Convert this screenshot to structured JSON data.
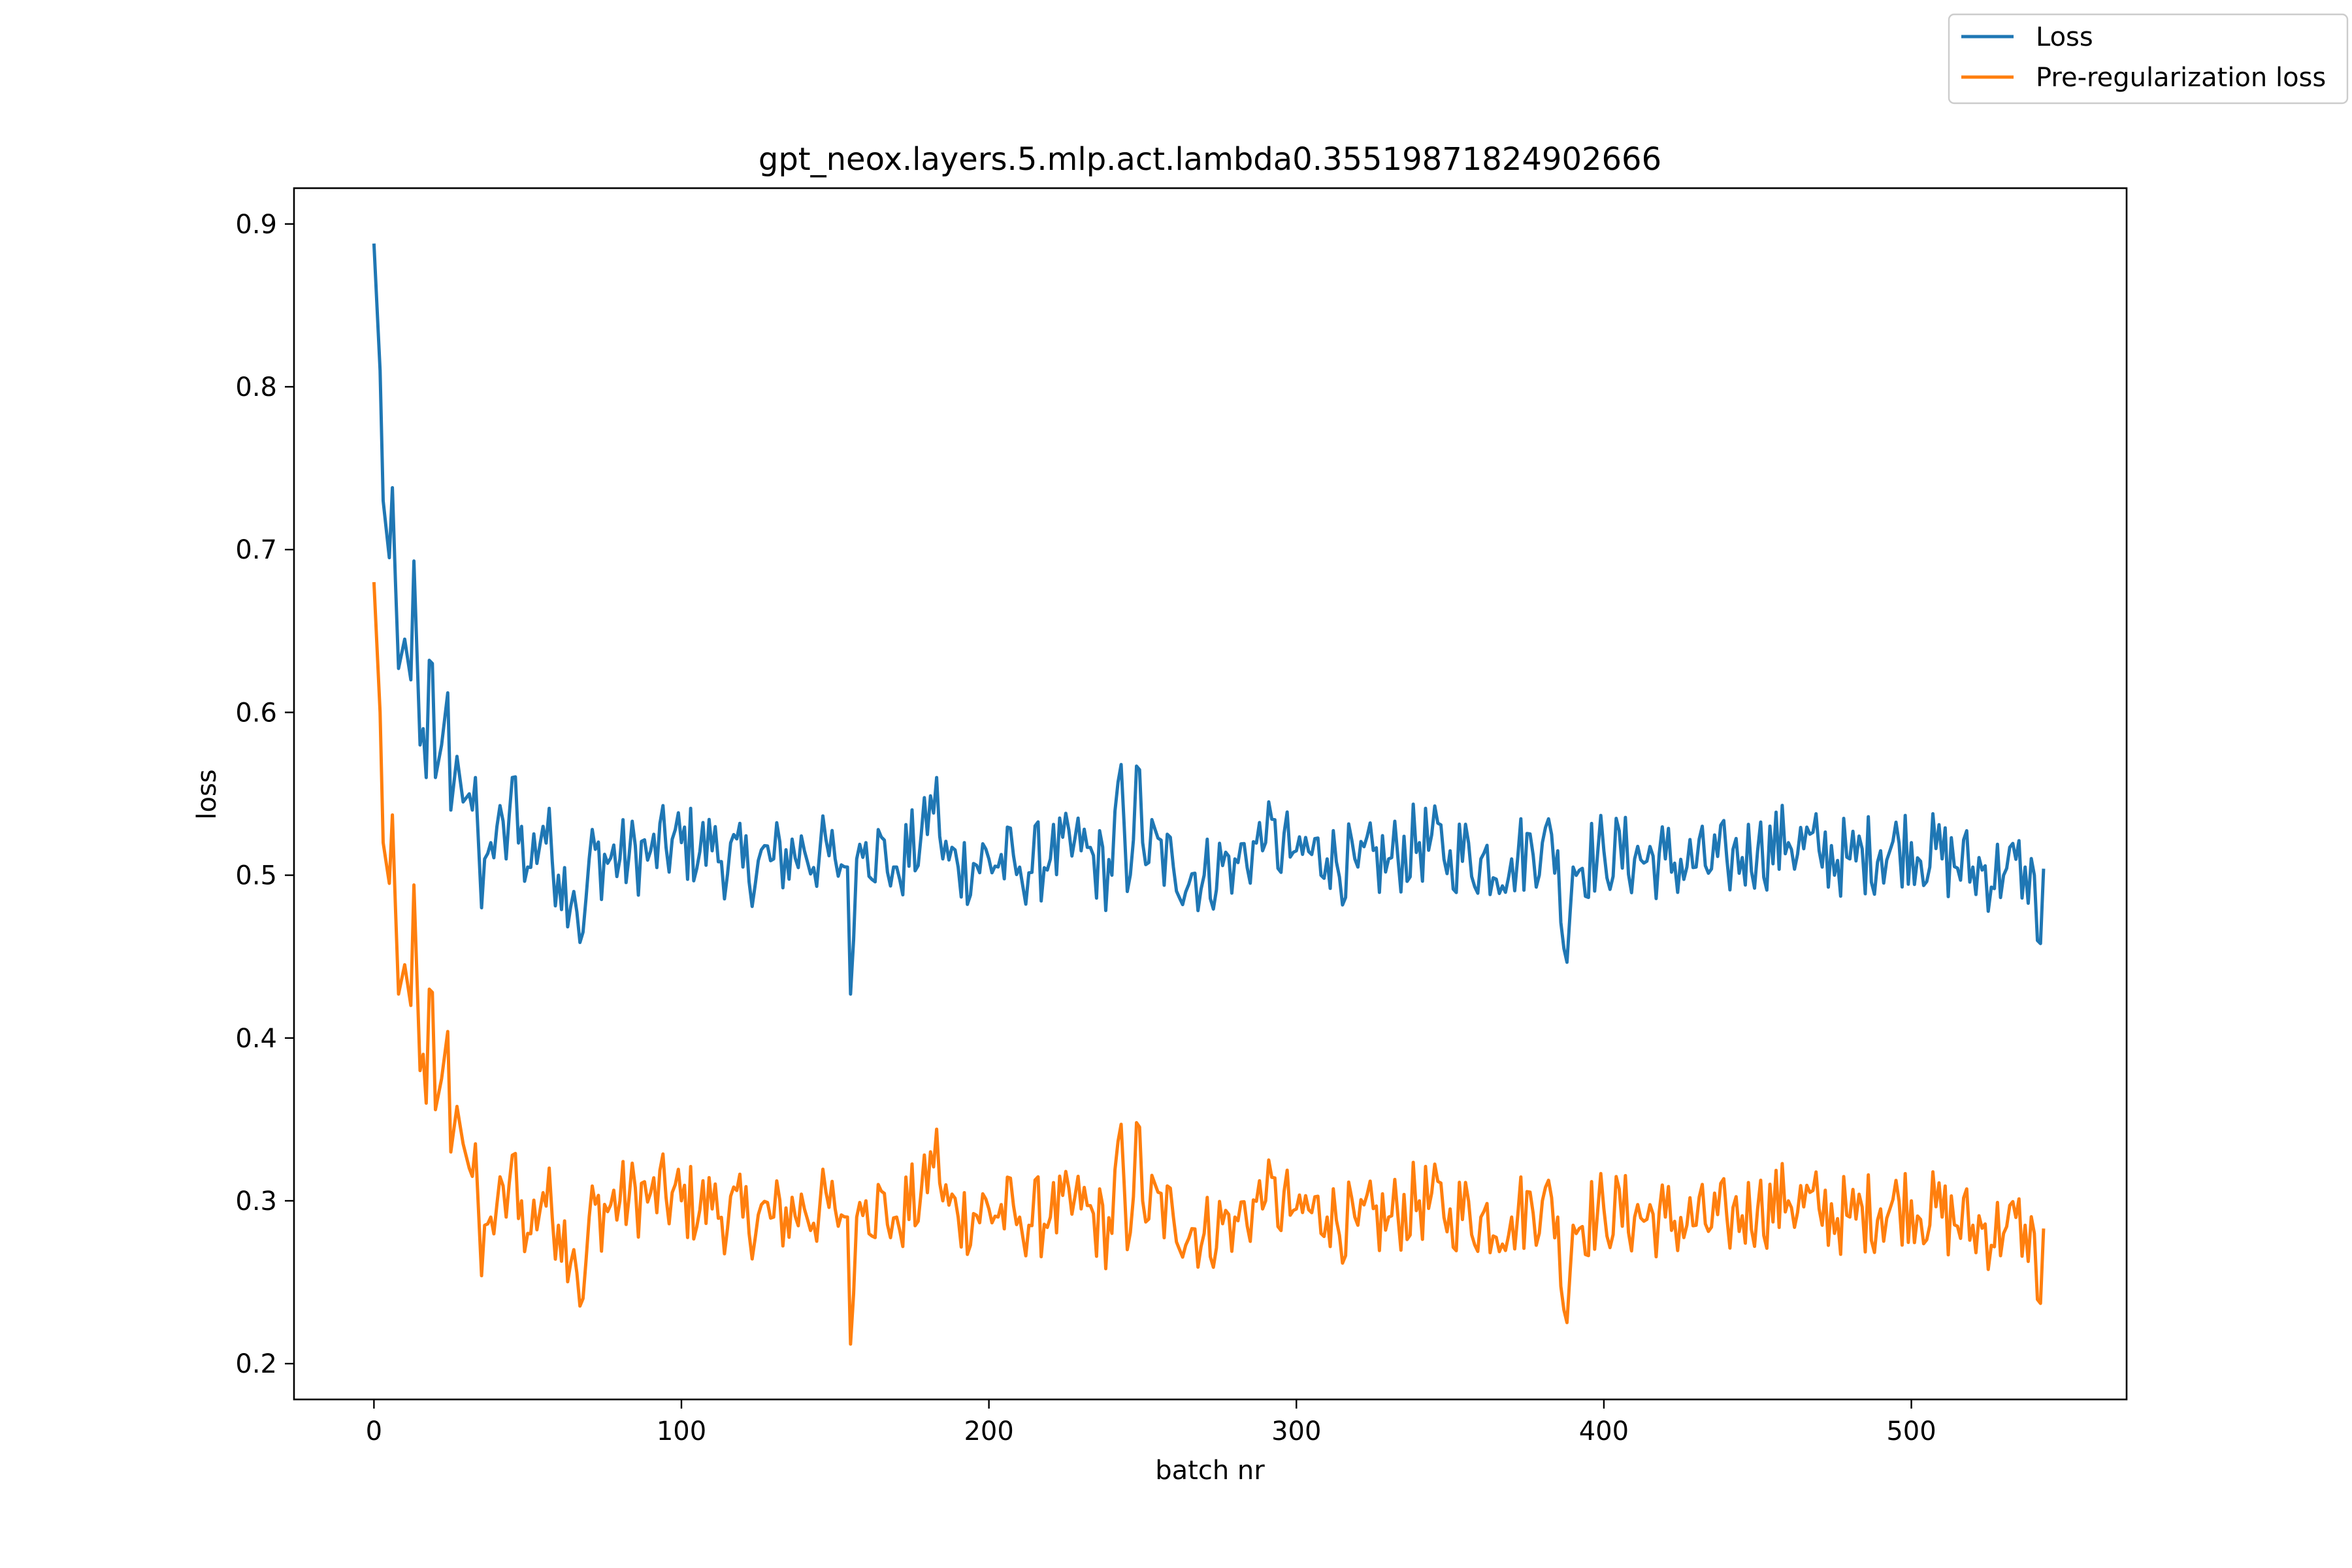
{
  "chart_data": {
    "type": "line",
    "title": "gpt_neox.layers.5.mlp.act.lambda0.35519871824902666",
    "xlabel": "batch nr",
    "ylabel": "loss",
    "xlim": [
      -26,
      570
    ],
    "ylim": [
      0.178,
      0.922
    ],
    "xticks": [
      0,
      100,
      200,
      300,
      400,
      500
    ],
    "yticks": [
      0.2,
      0.3,
      0.4,
      0.5,
      0.6,
      0.7,
      0.8,
      0.9
    ],
    "xtick_labels": [
      "0",
      "100",
      "200",
      "300",
      "400",
      "500"
    ],
    "ytick_labels": [
      "0.2",
      "0.3",
      "0.4",
      "0.5",
      "0.6",
      "0.7",
      "0.8",
      "0.9"
    ],
    "grid": false,
    "legend_position": "top-right (outside axes)",
    "series": [
      {
        "name": "Loss",
        "color": "#1f77b4",
        "anchors": [
          [
            0,
            0.888
          ],
          [
            2,
            0.81
          ],
          [
            3,
            0.73
          ],
          [
            5,
            0.695
          ],
          [
            6,
            0.738
          ],
          [
            7,
            0.68
          ],
          [
            8,
            0.627
          ],
          [
            10,
            0.645
          ],
          [
            12,
            0.62
          ],
          [
            13,
            0.693
          ],
          [
            15,
            0.58
          ],
          [
            16,
            0.59
          ],
          [
            17,
            0.56
          ],
          [
            18,
            0.632
          ],
          [
            19,
            0.63
          ],
          [
            20,
            0.56
          ],
          [
            22,
            0.58
          ],
          [
            24,
            0.612
          ],
          [
            25,
            0.54
          ],
          [
            27,
            0.573
          ],
          [
            29,
            0.545
          ],
          [
            31,
            0.55
          ],
          [
            32,
            0.54
          ],
          [
            33,
            0.56
          ],
          [
            35,
            0.48
          ],
          [
            36,
            0.51
          ],
          [
            38,
            0.52
          ],
          [
            40,
            0.53
          ],
          [
            43,
            0.51
          ],
          [
            45,
            0.56
          ],
          [
            48,
            0.53
          ],
          [
            50,
            0.505
          ],
          [
            55,
            0.53
          ],
          [
            60,
            0.5
          ],
          [
            65,
            0.49
          ],
          [
            68,
            0.465
          ],
          [
            70,
            0.51
          ],
          [
            80,
            0.51
          ],
          [
            90,
            0.515
          ],
          [
            100,
            0.52
          ],
          [
            110,
            0.515
          ],
          [
            120,
            0.505
          ],
          [
            130,
            0.51
          ],
          [
            140,
            0.515
          ],
          [
            150,
            0.51
          ],
          [
            154,
            0.505
          ],
          [
            155,
            0.427
          ],
          [
            157,
            0.51
          ],
          [
            160,
            0.52
          ],
          [
            170,
            0.505
          ],
          [
            180,
            0.525
          ],
          [
            183,
            0.56
          ],
          [
            185,
            0.51
          ],
          [
            190,
            0.505
          ],
          [
            200,
            0.51
          ],
          [
            210,
            0.505
          ],
          [
            220,
            0.51
          ],
          [
            230,
            0.515
          ],
          [
            240,
            0.5
          ],
          [
            243,
            0.568
          ],
          [
            245,
            0.49
          ],
          [
            248,
            0.567
          ],
          [
            250,
            0.52
          ],
          [
            260,
            0.505
          ],
          [
            270,
            0.5
          ],
          [
            280,
            0.51
          ],
          [
            290,
            0.52
          ],
          [
            300,
            0.515
          ],
          [
            310,
            0.51
          ],
          [
            320,
            0.505
          ],
          [
            330,
            0.51
          ],
          [
            340,
            0.52
          ],
          [
            350,
            0.515
          ],
          [
            360,
            0.51
          ],
          [
            370,
            0.51
          ],
          [
            380,
            0.52
          ],
          [
            385,
            0.515
          ],
          [
            387,
            0.455
          ],
          [
            390,
            0.505
          ],
          [
            400,
            0.515
          ],
          [
            410,
            0.51
          ],
          [
            420,
            0.51
          ],
          [
            430,
            0.505
          ],
          [
            440,
            0.51
          ],
          [
            450,
            0.515
          ],
          [
            460,
            0.52
          ],
          [
            470,
            0.515
          ],
          [
            480,
            0.51
          ],
          [
            490,
            0.515
          ],
          [
            500,
            0.52
          ],
          [
            510,
            0.51
          ],
          [
            520,
            0.505
          ],
          [
            530,
            0.5
          ],
          [
            537,
            0.505
          ],
          [
            540,
            0.5
          ],
          [
            542,
            0.458
          ],
          [
            543,
            0.504
          ]
        ],
        "noise_amplitude": 0.026
      },
      {
        "name": "Pre-regularization loss",
        "color": "#ff7f0e",
        "anchors": [
          [
            0,
            0.68
          ],
          [
            2,
            0.6
          ],
          [
            3,
            0.52
          ],
          [
            5,
            0.495
          ],
          [
            6,
            0.537
          ],
          [
            7,
            0.48
          ],
          [
            8,
            0.427
          ],
          [
            10,
            0.445
          ],
          [
            12,
            0.42
          ],
          [
            13,
            0.494
          ],
          [
            15,
            0.38
          ],
          [
            16,
            0.39
          ],
          [
            17,
            0.36
          ],
          [
            18,
            0.43
          ],
          [
            19,
            0.428
          ],
          [
            20,
            0.356
          ],
          [
            22,
            0.375
          ],
          [
            24,
            0.404
          ],
          [
            25,
            0.33
          ],
          [
            27,
            0.358
          ],
          [
            29,
            0.335
          ],
          [
            31,
            0.32
          ],
          [
            32,
            0.315
          ],
          [
            33,
            0.335
          ],
          [
            35,
            0.254
          ],
          [
            36,
            0.285
          ],
          [
            38,
            0.29
          ],
          [
            40,
            0.298
          ],
          [
            43,
            0.29
          ],
          [
            45,
            0.328
          ],
          [
            48,
            0.3
          ],
          [
            50,
            0.28
          ],
          [
            55,
            0.305
          ],
          [
            60,
            0.285
          ],
          [
            65,
            0.27
          ],
          [
            68,
            0.24
          ],
          [
            70,
            0.29
          ],
          [
            80,
            0.3
          ],
          [
            90,
            0.305
          ],
          [
            100,
            0.3
          ],
          [
            110,
            0.295
          ],
          [
            120,
            0.29
          ],
          [
            130,
            0.29
          ],
          [
            140,
            0.295
          ],
          [
            150,
            0.295
          ],
          [
            154,
            0.29
          ],
          [
            155,
            0.212
          ],
          [
            157,
            0.29
          ],
          [
            160,
            0.3
          ],
          [
            170,
            0.29
          ],
          [
            180,
            0.305
          ],
          [
            183,
            0.344
          ],
          [
            185,
            0.3
          ],
          [
            190,
            0.29
          ],
          [
            200,
            0.295
          ],
          [
            210,
            0.29
          ],
          [
            220,
            0.29
          ],
          [
            230,
            0.295
          ],
          [
            240,
            0.28
          ],
          [
            243,
            0.347
          ],
          [
            245,
            0.27
          ],
          [
            248,
            0.348
          ],
          [
            250,
            0.3
          ],
          [
            260,
            0.29
          ],
          [
            270,
            0.28
          ],
          [
            280,
            0.29
          ],
          [
            290,
            0.3
          ],
          [
            300,
            0.295
          ],
          [
            310,
            0.29
          ],
          [
            320,
            0.285
          ],
          [
            330,
            0.29
          ],
          [
            340,
            0.3
          ],
          [
            350,
            0.295
          ],
          [
            360,
            0.29
          ],
          [
            370,
            0.29
          ],
          [
            380,
            0.3
          ],
          [
            385,
            0.29
          ],
          [
            387,
            0.233
          ],
          [
            390,
            0.285
          ],
          [
            400,
            0.295
          ],
          [
            410,
            0.29
          ],
          [
            420,
            0.29
          ],
          [
            430,
            0.285
          ],
          [
            440,
            0.29
          ],
          [
            450,
            0.295
          ],
          [
            460,
            0.3
          ],
          [
            470,
            0.295
          ],
          [
            480,
            0.29
          ],
          [
            490,
            0.295
          ],
          [
            500,
            0.3
          ],
          [
            510,
            0.29
          ],
          [
            520,
            0.285
          ],
          [
            530,
            0.28
          ],
          [
            537,
            0.285
          ],
          [
            540,
            0.28
          ],
          [
            542,
            0.237
          ],
          [
            543,
            0.283
          ]
        ],
        "noise_amplitude": 0.026
      }
    ]
  }
}
